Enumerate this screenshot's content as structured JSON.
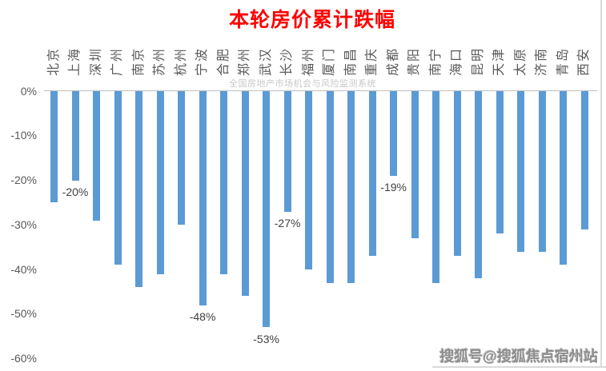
{
  "title": "本轮房价累计跌幅",
  "watermark_center": "全国房地产市场机会与风险监测系统",
  "watermark_bottom_right": "搜狐号@搜狐焦点宿州站",
  "colors": {
    "bar": "#5b9bd5",
    "title": "#fe0000",
    "axis_text": "#595959",
    "data_label_text": "#404040",
    "axis_line": "#bfbfbf",
    "watermark": "#c8c8c8"
  },
  "chart_data": {
    "type": "bar",
    "title": "本轮房价累计跌幅",
    "xlabel": "",
    "ylabel": "",
    "categories": [
      "北京",
      "上海",
      "深圳",
      "广州",
      "南京",
      "苏州",
      "杭州",
      "宁波",
      "合肥",
      "郑州",
      "武汉",
      "长沙",
      "福州",
      "厦门",
      "南昌",
      "重庆",
      "成都",
      "贵阳",
      "南宁",
      "海口",
      "昆明",
      "天津",
      "太原",
      "济南",
      "青岛",
      "西安"
    ],
    "values": [
      -25,
      -20,
      -29,
      -39,
      -44,
      -41,
      -30,
      -48,
      -41,
      -46,
      -53,
      -27,
      -40,
      -43,
      -43,
      -37,
      -19,
      -33,
      -43,
      -37,
      -42,
      -32,
      -36,
      -36,
      -39,
      -31
    ],
    "data_labels": [
      null,
      "-20%",
      null,
      null,
      null,
      null,
      null,
      "-48%",
      null,
      null,
      "-53%",
      "-27%",
      null,
      null,
      null,
      null,
      "-19%",
      null,
      null,
      null,
      null,
      null,
      null,
      null,
      null,
      null
    ],
    "y_ticks": [
      "0%",
      "-10%",
      "-20%",
      "-30%",
      "-40%",
      "-50%",
      "-60%"
    ],
    "ylim": [
      -60,
      0
    ],
    "grid": false,
    "legend": null,
    "bar_color": "#5b9bd5",
    "unit": "percent"
  }
}
